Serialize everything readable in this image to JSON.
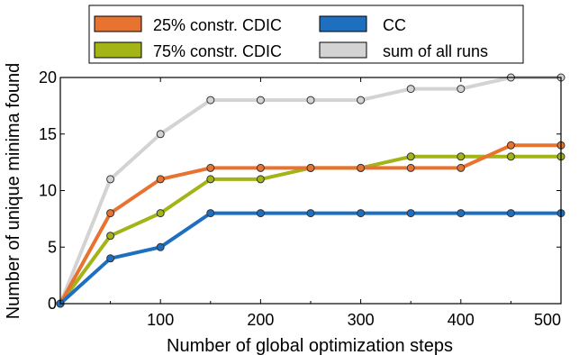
{
  "chart_data": {
    "type": "line",
    "xlabel": "Number of global optimization steps",
    "ylabel": "Number of unique minima found",
    "xlim": [
      0,
      500
    ],
    "ylim": [
      0,
      20
    ],
    "x_ticks": [
      100,
      200,
      300,
      400,
      500
    ],
    "y_ticks": [
      0,
      5,
      10,
      15,
      20
    ],
    "x_tick_labels": [
      "100",
      "200",
      "300",
      "400",
      "500"
    ],
    "y_tick_labels": [
      "0",
      "5",
      "10",
      "15",
      "20"
    ],
    "grid": false,
    "legend_placement": "top, outside plot area, 2 columns",
    "x": [
      0,
      50,
      100,
      150,
      200,
      250,
      300,
      350,
      400,
      450,
      500
    ],
    "series": [
      {
        "name": "sum of all runs",
        "color": "#d3d3d3",
        "values": [
          0,
          11,
          15,
          18,
          18,
          18,
          18,
          19,
          19,
          20,
          20
        ]
      },
      {
        "name": "75% constr. CDIC",
        "color": "#a2b416",
        "values": [
          0,
          6,
          8,
          11,
          11,
          12,
          12,
          13,
          13,
          13,
          13
        ]
      },
      {
        "name": "25% constr. CDIC",
        "color": "#e87330",
        "values": [
          0,
          8,
          11,
          12,
          12,
          12,
          12,
          12,
          12,
          14,
          14
        ]
      },
      {
        "name": "CC",
        "color": "#1f6fc0",
        "values": [
          0,
          4,
          5,
          8,
          8,
          8,
          8,
          8,
          8,
          8,
          8
        ]
      }
    ],
    "legend": [
      {
        "label": "25% constr. CDIC",
        "color": "#e87330"
      },
      {
        "label": "CC",
        "color": "#1f6fc0"
      },
      {
        "label": "75% constr. CDIC",
        "color": "#a2b416"
      },
      {
        "label": "sum of all runs",
        "color": "#d3d3d3"
      }
    ]
  }
}
